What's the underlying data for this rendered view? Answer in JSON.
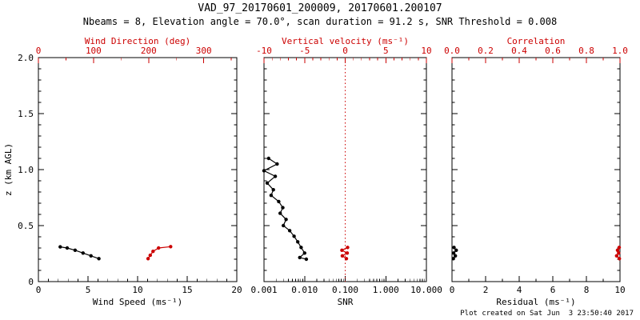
{
  "header": {
    "title": "VAD_97_20170601_200009, 20170601.200107",
    "subtitle": "Nbeams = 8, Elevation angle = 70.0°, scan duration = 91.2 s, SNR Threshold = 0.008"
  },
  "footer": {
    "created": "Plot created on Sat Jun  3 23:50:40 2017"
  },
  "colors": {
    "axis_black": "#000000",
    "accent_red": "#cc0000"
  },
  "chart_data": {
    "type": "line",
    "title": "VAD_97_20170601_200009, 20170601.200107",
    "y_axis": {
      "label": "z (km AGL)",
      "range": [
        0,
        2
      ],
      "ticks": [
        0,
        0.5,
        1.0,
        1.5,
        2.0
      ],
      "tick_labels": [
        "0",
        "0.5",
        "1.0",
        "1.5",
        "2.0"
      ],
      "minor_step": 0.1
    },
    "panels": [
      {
        "id": "wind",
        "bottom_axis": {
          "label": "Wind Speed (ms⁻¹)",
          "scale": "linear",
          "range": [
            0,
            20
          ],
          "ticks": [
            0,
            5,
            10,
            15,
            20
          ],
          "tick_labels": [
            "0",
            "5",
            "10",
            "15",
            "20"
          ],
          "minor_step": 1
        },
        "top_axis": {
          "label": "Wind Direction (deg)",
          "scale": "linear",
          "range": [
            0,
            360
          ],
          "ticks": [
            0,
            100,
            200,
            300
          ],
          "tick_labels": [
            "0",
            "100",
            "200",
            "300"
          ],
          "minor_step": 50
        },
        "series": [
          {
            "name": "wind-speed",
            "axis": "bottom",
            "color": "#000000",
            "points": [
              [
                2.2,
                0.31
              ],
              [
                2.9,
                0.3
              ],
              [
                3.7,
                0.28
              ],
              [
                4.5,
                0.255
              ],
              [
                5.3,
                0.23
              ],
              [
                6.1,
                0.205
              ]
            ]
          },
          {
            "name": "wind-direction",
            "axis": "top",
            "color": "#cc0000",
            "points": [
              [
                199,
                0.205
              ],
              [
                203,
                0.235
              ],
              [
                208,
                0.27
              ],
              [
                218,
                0.3
              ],
              [
                240,
                0.312
              ]
            ]
          }
        ]
      },
      {
        "id": "snr",
        "bottom_axis": {
          "label": "SNR",
          "scale": "log",
          "range": [
            0.001,
            10
          ],
          "ticks": [
            0.001,
            0.01,
            0.1,
            1,
            10
          ],
          "tick_labels": [
            "0.001",
            "0.010",
            "0.100",
            "1.000",
            "10.000"
          ]
        },
        "top_axis": {
          "label": "Vertical velocity (ms⁻¹)",
          "scale": "linear",
          "range": [
            -10,
            10
          ],
          "ticks": [
            -10,
            -5,
            0,
            5,
            10
          ],
          "tick_labels": [
            "-10",
            "-5",
            "0",
            "5",
            "10"
          ],
          "minor_step": 1
        },
        "ref_line": {
          "axis": "top",
          "value": 0,
          "style": "dotted",
          "color": "#cc0000"
        },
        "series": [
          {
            "name": "snr-profile",
            "axis": "bottom",
            "color": "#000000",
            "points": [
              [
                0.0013,
                1.1
              ],
              [
                0.0021,
                1.05
              ],
              [
                0.001,
                0.99
              ],
              [
                0.0019,
                0.94
              ],
              [
                0.0012,
                0.88
              ],
              [
                0.0017,
                0.82
              ],
              [
                0.0015,
                0.77
              ],
              [
                0.0023,
                0.715
              ],
              [
                0.0029,
                0.66
              ],
              [
                0.0025,
                0.61
              ],
              [
                0.0035,
                0.555
              ],
              [
                0.003,
                0.5
              ],
              [
                0.0043,
                0.455
              ],
              [
                0.0055,
                0.405
              ],
              [
                0.0068,
                0.355
              ],
              [
                0.0082,
                0.305
              ],
              [
                0.01,
                0.255
              ],
              [
                0.0076,
                0.215
              ],
              [
                0.011,
                0.2
              ]
            ]
          },
          {
            "name": "vertical-velocity",
            "axis": "top",
            "color": "#cc0000",
            "points": [
              [
                0.3,
                0.305
              ],
              [
                -0.4,
                0.28
              ],
              [
                0.25,
                0.255
              ],
              [
                -0.35,
                0.23
              ],
              [
                0.15,
                0.205
              ]
            ]
          }
        ]
      },
      {
        "id": "residual",
        "bottom_axis": {
          "label": "Residual (ms⁻¹)",
          "scale": "linear",
          "range": [
            0,
            10
          ],
          "ticks": [
            0,
            2,
            4,
            6,
            8,
            10
          ],
          "tick_labels": [
            "0",
            "2",
            "4",
            "6",
            "8",
            "10"
          ],
          "minor_step": 1
        },
        "top_axis": {
          "label": "Correlation",
          "scale": "linear",
          "range": [
            0,
            1
          ],
          "ticks": [
            0,
            0.2,
            0.4,
            0.6,
            0.8,
            1.0
          ],
          "tick_labels": [
            "0.0",
            "0.2",
            "0.4",
            "0.6",
            "0.8",
            "1.0"
          ],
          "minor_step": 0.1
        },
        "series": [
          {
            "name": "residual-profile",
            "axis": "bottom",
            "color": "#000000",
            "points": [
              [
                0.12,
                0.305
              ],
              [
                0.25,
                0.28
              ],
              [
                0.1,
                0.255
              ],
              [
                0.2,
                0.23
              ],
              [
                0.08,
                0.205
              ]
            ]
          },
          {
            "name": "correlation",
            "axis": "top",
            "color": "#cc0000",
            "points": [
              [
                0.995,
                0.305
              ],
              [
                0.985,
                0.28
              ],
              [
                0.992,
                0.255
              ],
              [
                0.98,
                0.23
              ],
              [
                0.996,
                0.205
              ]
            ]
          }
        ]
      }
    ]
  }
}
